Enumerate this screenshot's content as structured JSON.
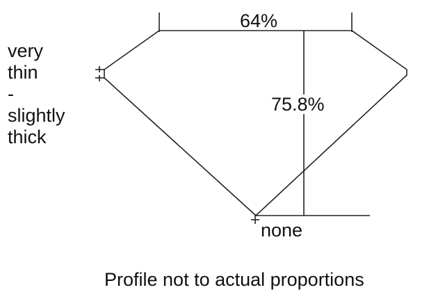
{
  "table_percent": "64%",
  "depth_percent": "75.8%",
  "culet": "none",
  "girdle": [
    "very",
    "thin",
    "-",
    "slightly",
    "thick"
  ],
  "caption": "Profile not to actual proportions",
  "line_color": "#222222"
}
